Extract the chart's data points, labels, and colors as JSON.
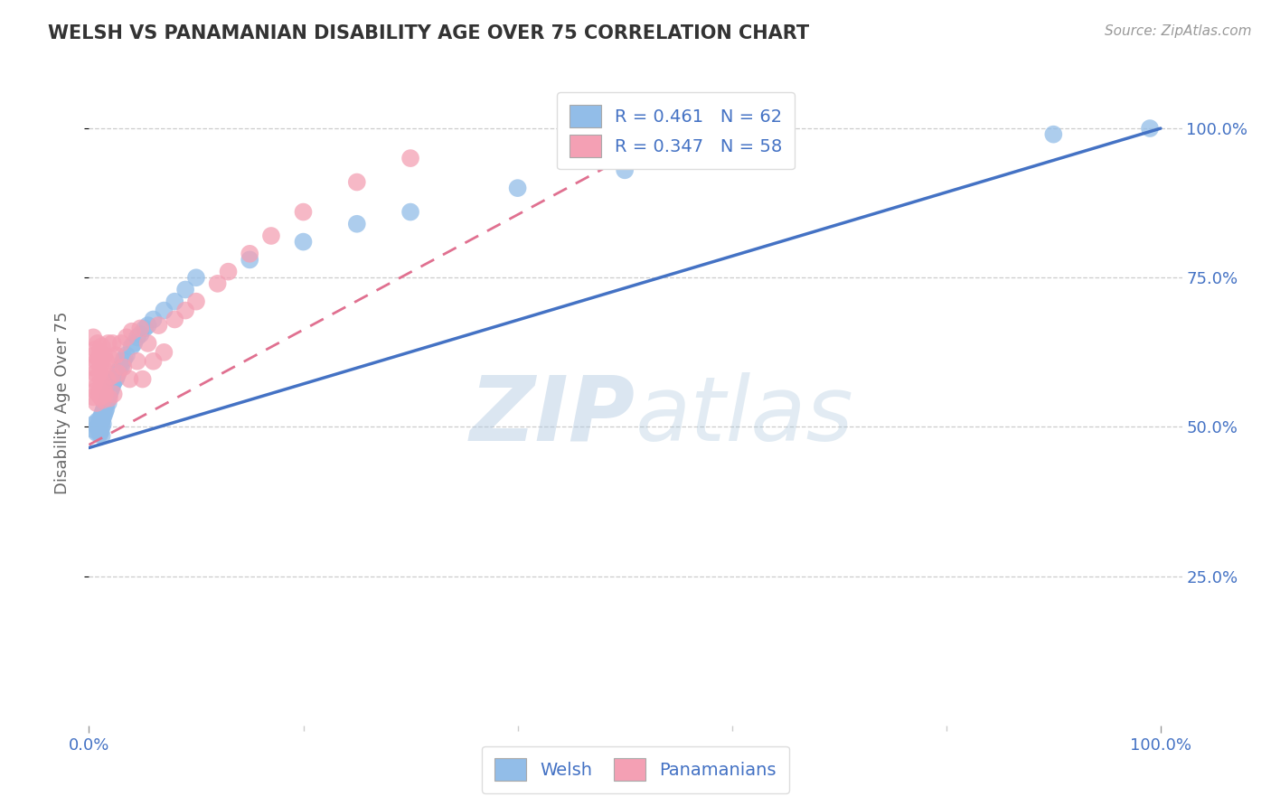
{
  "title": "WELSH VS PANAMANIAN DISABILITY AGE OVER 75 CORRELATION CHART",
  "source": "Source: ZipAtlas.com",
  "ylabel": "Disability Age Over 75",
  "ytick_labels": [
    "100.0%",
    "75.0%",
    "50.0%",
    "25.0%"
  ],
  "ytick_vals": [
    1.0,
    0.75,
    0.5,
    0.25
  ],
  "xtick_labels": [
    "0.0%",
    "100.0%"
  ],
  "xtick_vals": [
    0.0,
    1.0
  ],
  "xlim": [
    0.0,
    1.02
  ],
  "ylim": [
    0.0,
    1.08
  ],
  "welsh_R": 0.461,
  "welsh_N": 62,
  "panam_R": 0.347,
  "panam_N": 58,
  "welsh_color": "#92BDE8",
  "panam_color": "#F4A0B4",
  "welsh_line_color": "#4472C4",
  "panam_line_color": "#E07090",
  "watermark_zip": "ZIP",
  "watermark_atlas": "atlas",
  "welsh_scatter_x": [
    0.005,
    0.005,
    0.007,
    0.008,
    0.008,
    0.009,
    0.009,
    0.01,
    0.01,
    0.01,
    0.01,
    0.011,
    0.011,
    0.011,
    0.012,
    0.012,
    0.012,
    0.012,
    0.013,
    0.013,
    0.013,
    0.014,
    0.014,
    0.015,
    0.015,
    0.016,
    0.016,
    0.017,
    0.018,
    0.018,
    0.019,
    0.02,
    0.021,
    0.022,
    0.023,
    0.025,
    0.026,
    0.027,
    0.028,
    0.03,
    0.032,
    0.033,
    0.035,
    0.04,
    0.042,
    0.045,
    0.048,
    0.052,
    0.055,
    0.06,
    0.07,
    0.08,
    0.09,
    0.1,
    0.15,
    0.2,
    0.25,
    0.3,
    0.4,
    0.5,
    0.9,
    0.99
  ],
  "welsh_scatter_y": [
    0.495,
    0.505,
    0.49,
    0.51,
    0.5,
    0.498,
    0.502,
    0.51,
    0.505,
    0.495,
    0.488,
    0.515,
    0.508,
    0.492,
    0.52,
    0.51,
    0.5,
    0.485,
    0.525,
    0.515,
    0.505,
    0.53,
    0.52,
    0.535,
    0.525,
    0.54,
    0.53,
    0.545,
    0.55,
    0.54,
    0.555,
    0.56,
    0.565,
    0.57,
    0.575,
    0.58,
    0.585,
    0.59,
    0.595,
    0.6,
    0.61,
    0.615,
    0.62,
    0.635,
    0.64,
    0.65,
    0.655,
    0.665,
    0.67,
    0.68,
    0.695,
    0.71,
    0.73,
    0.75,
    0.78,
    0.81,
    0.84,
    0.86,
    0.9,
    0.93,
    0.99,
    1.0
  ],
  "panam_scatter_x": [
    0.003,
    0.004,
    0.004,
    0.005,
    0.005,
    0.006,
    0.006,
    0.006,
    0.007,
    0.007,
    0.008,
    0.008,
    0.009,
    0.009,
    0.01,
    0.01,
    0.01,
    0.011,
    0.011,
    0.012,
    0.012,
    0.013,
    0.013,
    0.014,
    0.014,
    0.015,
    0.016,
    0.017,
    0.018,
    0.019,
    0.02,
    0.021,
    0.022,
    0.023,
    0.025,
    0.027,
    0.03,
    0.032,
    0.035,
    0.038,
    0.04,
    0.045,
    0.048,
    0.05,
    0.055,
    0.06,
    0.065,
    0.07,
    0.08,
    0.09,
    0.1,
    0.12,
    0.13,
    0.15,
    0.17,
    0.2,
    0.25,
    0.3
  ],
  "panam_scatter_y": [
    0.6,
    0.55,
    0.65,
    0.58,
    0.62,
    0.56,
    0.59,
    0.63,
    0.54,
    0.61,
    0.57,
    0.64,
    0.555,
    0.615,
    0.56,
    0.59,
    0.625,
    0.55,
    0.605,
    0.575,
    0.635,
    0.545,
    0.6,
    0.565,
    0.62,
    0.555,
    0.61,
    0.58,
    0.64,
    0.548,
    0.615,
    0.585,
    0.64,
    0.555,
    0.62,
    0.59,
    0.64,
    0.6,
    0.65,
    0.58,
    0.66,
    0.61,
    0.665,
    0.58,
    0.64,
    0.61,
    0.67,
    0.625,
    0.68,
    0.695,
    0.71,
    0.74,
    0.76,
    0.79,
    0.82,
    0.86,
    0.91,
    0.95
  ]
}
